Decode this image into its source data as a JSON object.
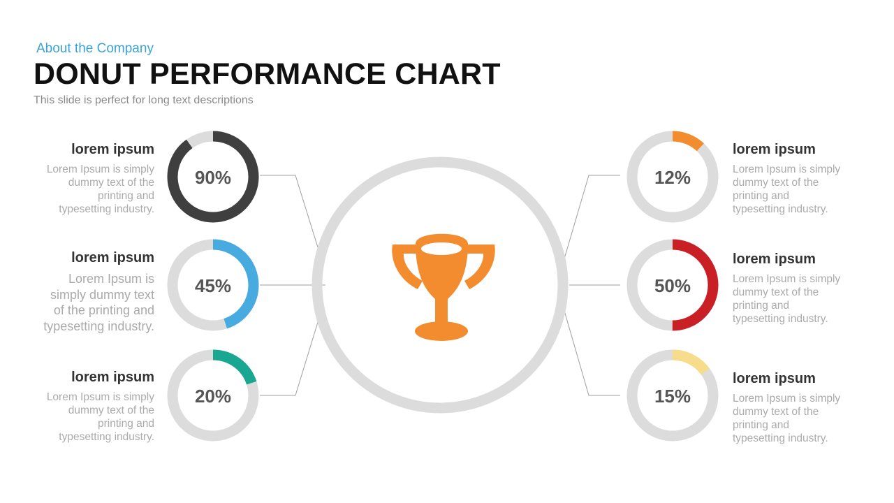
{
  "header": {
    "kicker": "About the Company",
    "title": "DONUT PERFORMANCE CHART",
    "subtitle": "This slide is perfect for long text descriptions"
  },
  "colors": {
    "track": "#dcdcdc",
    "connector": "#9e9e9e",
    "trophy": "#f28c2e",
    "kicker": "#3aa3d6"
  },
  "center_icon": "trophy-icon",
  "items": [
    {
      "title": "lorem ipsum",
      "desc": "Lorem Ipsum is simply dummy text of the printing and typesetting industry."
    },
    {
      "title": "lorem ipsum",
      "desc": "Lorem Ipsum is simply dummy text of the printing and typesetting industry."
    },
    {
      "title": "lorem ipsum",
      "desc": "Lorem Ipsum is simply dummy text of the printing and typesetting industry."
    },
    {
      "title": "lorem ipsum",
      "desc": "Lorem Ipsum is simply dummy text of the printing and typesetting industry."
    },
    {
      "title": "lorem ipsum",
      "desc": "Lorem Ipsum is simply dummy text of the printing and typesetting industry."
    },
    {
      "title": "lorem ipsum",
      "desc": "Lorem Ipsum is simply dummy text of the printing and typesetting industry."
    }
  ],
  "chart_data": {
    "type": "pie",
    "variant": "donut",
    "series": [
      {
        "value": 90,
        "label": "90%",
        "color": "#3f3f3f"
      },
      {
        "value": 45,
        "label": "45%",
        "color": "#47abe0"
      },
      {
        "value": 20,
        "label": "20%",
        "color": "#1aa792"
      },
      {
        "value": 12,
        "label": "12%",
        "color": "#f28c2e"
      },
      {
        "value": 50,
        "label": "50%",
        "color": "#c92026"
      },
      {
        "value": 15,
        "label": "15%",
        "color": "#f7dc8c"
      }
    ]
  }
}
